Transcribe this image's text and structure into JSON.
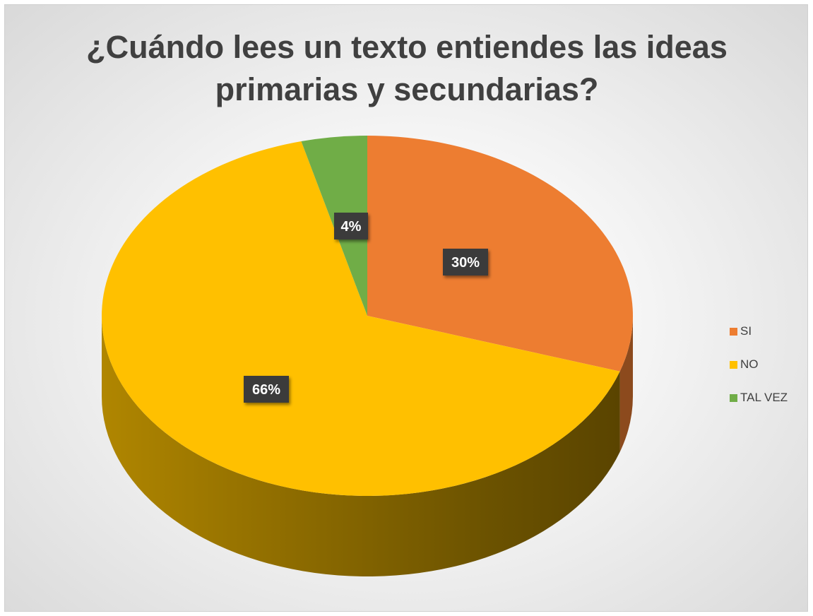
{
  "chart_data": {
    "type": "pie",
    "title_lines": [
      "¿Cuándo lees un texto entiendes las ideas",
      "primarias y secundarias?"
    ],
    "categories": [
      "SI",
      "NO",
      "TAL VEZ"
    ],
    "values": [
      30,
      66,
      4
    ],
    "data_labels": [
      "30%",
      "66%",
      "4%"
    ],
    "colors": [
      "#ED7D31",
      "#FFC000",
      "#70AD47"
    ],
    "side_colors": [
      "#8C4A1D",
      "#8A6700",
      "#3F6328"
    ],
    "legend_position": "right",
    "style": "3d"
  }
}
